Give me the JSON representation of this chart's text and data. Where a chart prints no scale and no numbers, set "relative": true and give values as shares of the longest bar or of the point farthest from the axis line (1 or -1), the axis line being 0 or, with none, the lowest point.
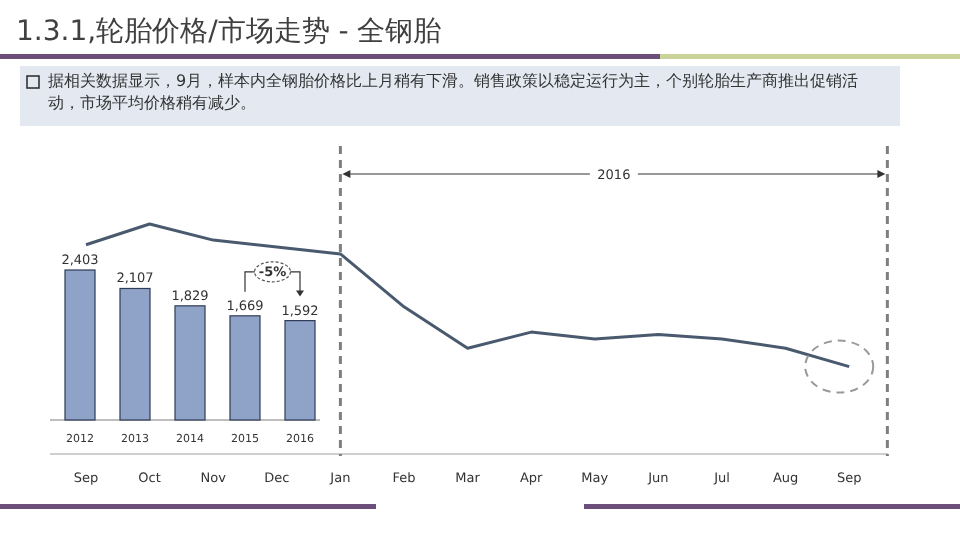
{
  "chart_data": [
    {
      "type": "line",
      "title": "1.3.1,轮胎价格/市场走势 - 全钢胎",
      "subtitle": "据相关数据显示，9月，样本内全钢胎价格比上月稍有下滑。销售政策以稳定运行为主，个别轮胎生产商推出促销活动，市场平均价格稍有减少。",
      "categories": [
        "Sep",
        "Oct",
        "Nov",
        "Dec",
        "Jan",
        "Feb",
        "Mar",
        "Apr",
        "May",
        "Jun",
        "Jul",
        "Aug",
        "Sep"
      ],
      "relative": true,
      "color": "#4a5a6e",
      "values": [
        0.91,
        1,
        0.93,
        0.9,
        0.87,
        0.64,
        0.46,
        0.53,
        0.5,
        0.52,
        0.5,
        0.46,
        0.38
      ],
      "ref_lines": [
        {
          "axis": "x",
          "value": "Jan",
          "line_style": "dashed",
          "color": "#7f7f7f"
        }
      ],
      "annotations": [
        "2016"
      ]
    },
    {
      "type": "bar",
      "categories": [
        "2012",
        "2013",
        "2014",
        "2015",
        "2016"
      ],
      "values": [
        2403,
        2107,
        1829,
        1669,
        1592
      ],
      "color": "#8fa3c8",
      "value_labels": [
        "2,403",
        "2,107",
        "1,829",
        "1,669",
        "1,592"
      ],
      "annotations": [
        "-5%"
      ]
    }
  ]
}
